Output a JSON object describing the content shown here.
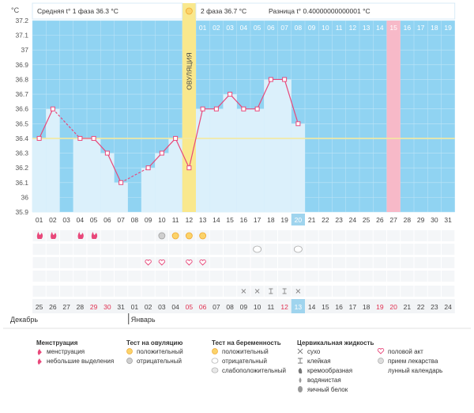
{
  "chart_data": {
    "type": "line",
    "ylabel": "°C",
    "ylim": [
      35.9,
      37.2
    ],
    "yticks": [
      "37.2",
      "37.1",
      "37",
      "36.9",
      "36.8",
      "36.7",
      "36.6",
      "36.5",
      "36.4",
      "36.3",
      "36.2",
      "36.1",
      "36",
      "35.9"
    ],
    "days": [
      "01",
      "02",
      "03",
      "04",
      "05",
      "06",
      "07",
      "08",
      "09",
      "10",
      "11",
      "12",
      "13",
      "14",
      "15",
      "16",
      "17",
      "18",
      "19",
      "20",
      "21",
      "22",
      "23",
      "24",
      "25",
      "26",
      "27",
      "28",
      "29",
      "30",
      "31"
    ],
    "top_days": [
      "01",
      "02",
      "03",
      "04",
      "05",
      "06",
      "07",
      "08",
      "09",
      "10",
      "11",
      "12",
      "13",
      "14",
      "15",
      "16",
      "17",
      "18",
      "19"
    ],
    "temperatures": [
      36.4,
      36.6,
      null,
      36.4,
      36.4,
      36.3,
      36.1,
      null,
      36.2,
      36.3,
      36.4,
      36.2,
      36.6,
      36.6,
      36.7,
      36.6,
      36.6,
      36.8,
      36.8,
      36.5
    ],
    "coverline": 36.4,
    "ovulation_day": 12,
    "ovulation_label": "ОВУЛЯЦИЯ",
    "today_day": 20,
    "highlight_top_day": 15,
    "header": {
      "phase1_label": "Средняя t° 1 фаза",
      "phase1_value": "36.3 °C",
      "phase2_label": "2 фаза",
      "phase2_value": "36.7 °C",
      "diff_label": "Разница t°",
      "diff_value": "0.40000000000001 °C"
    },
    "calendar_dates": [
      "25",
      "26",
      "27",
      "28",
      "29",
      "30",
      "31",
      "01",
      "02",
      "03",
      "04",
      "05",
      "06",
      "07",
      "08",
      "09",
      "10",
      "11",
      "12",
      "13",
      "14",
      "15",
      "16",
      "17",
      "18",
      "19",
      "20",
      "21",
      "22",
      "23",
      "24"
    ],
    "red_dates_idx": [
      4,
      5,
      11,
      12,
      18,
      25,
      26
    ],
    "month_prev": "Декабрь",
    "month_next": "Январь",
    "markers": {
      "menstruation": [
        1,
        2,
        4,
        5
      ],
      "ovulation_test": {
        "negative": [
          10
        ],
        "positive": [
          11,
          12,
          13
        ]
      },
      "pregnancy_test": [
        17,
        20
      ],
      "intercourse": [
        9,
        10,
        12,
        13
      ],
      "fluid": [
        "dry",
        "dry",
        "sticky",
        "sticky",
        "dry"
      ]
    }
  },
  "legend": {
    "menstruation": {
      "title": "Менструация",
      "items": [
        "менструация",
        "небольшие выделения"
      ]
    },
    "ovulation": {
      "title": "Тест на овуляцию",
      "items": [
        "положительный",
        "отрицательный"
      ]
    },
    "pregnancy": {
      "title": "Тест на беременность",
      "items": [
        "положительный",
        "отрицательный",
        "слабоположительный"
      ]
    },
    "fluid": {
      "title": "Цервикальная жидкость",
      "items": [
        "сухо",
        "клейкая",
        "кремообразная",
        "водянистая",
        "яичный белок"
      ]
    },
    "other": {
      "items": [
        "половой акт",
        "прием лекарства",
        "лунный календарь"
      ]
    }
  },
  "colors": {
    "sky": "#90d3f2",
    "bar": "#dbf0fb",
    "line": "#e8487a",
    "ovulation": "#f9e88d",
    "highlight": "#f7b9c8",
    "today": "#9fd4ee",
    "coverline": "#f4e9a0"
  }
}
